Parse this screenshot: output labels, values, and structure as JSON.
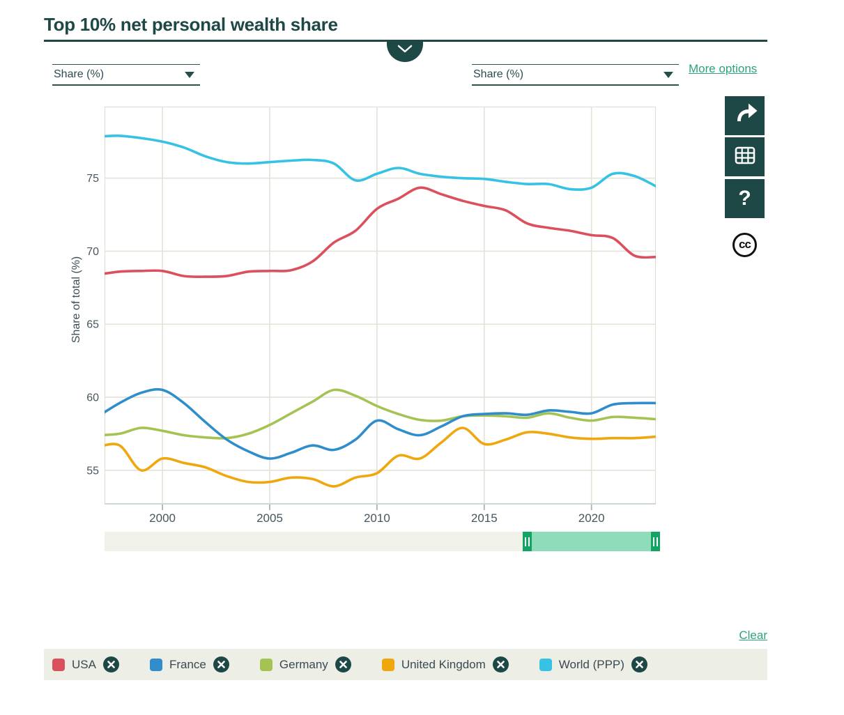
{
  "header": {
    "title": "Top 10% net personal wealth share",
    "accent_color": "#1d4845"
  },
  "controls": {
    "left_unit_select": {
      "value": "Share (%)"
    },
    "right_unit_select": {
      "value": "Share (%)"
    },
    "more_options_label": "More options",
    "link_color": "#2ba47b"
  },
  "toolbar": {
    "button_color": "#1d4845",
    "help_label": "?",
    "cc_label": "cc"
  },
  "chart_data": {
    "type": "line",
    "title": "Top 10% net personal wealth share",
    "ylabel": "Share of total (%)",
    "xlabel": "",
    "grid": true,
    "legend_position": "bottom",
    "xlim": [
      1997.3,
      2023.0
    ],
    "ylim": [
      52.7,
      79.9
    ],
    "xticks": [
      2000,
      2005,
      2010,
      2015,
      2020
    ],
    "yticks": [
      55,
      60,
      65,
      70,
      75
    ],
    "x": [
      1997,
      1998,
      1999,
      2000,
      2001,
      2002,
      2003,
      2004,
      2005,
      2006,
      2007,
      2008,
      2009,
      2010,
      2011,
      2012,
      2013,
      2014,
      2015,
      2016,
      2017,
      2018,
      2019,
      2020,
      2021,
      2022,
      2023
    ],
    "series": [
      {
        "name": "USA",
        "color": "#dc4f5c",
        "values": [
          68.4,
          68.6,
          68.65,
          68.65,
          68.3,
          68.25,
          68.3,
          68.6,
          68.65,
          68.7,
          69.3,
          70.6,
          71.4,
          72.9,
          73.6,
          74.35,
          73.9,
          73.45,
          73.1,
          72.8,
          71.9,
          71.6,
          71.4,
          71.1,
          70.9,
          69.7,
          69.6
        ]
      },
      {
        "name": "France",
        "color": "#2f8dcb",
        "values": [
          58.7,
          59.6,
          60.3,
          60.5,
          59.6,
          58.3,
          57.1,
          56.3,
          55.8,
          56.2,
          56.7,
          56.4,
          57.1,
          58.4,
          57.8,
          57.4,
          58.0,
          58.7,
          58.85,
          58.9,
          58.8,
          59.1,
          59.0,
          58.9,
          59.5,
          59.6,
          59.6
        ]
      },
      {
        "name": "Germany",
        "color": "#a5c353",
        "values": [
          57.4,
          57.5,
          57.9,
          57.7,
          57.4,
          57.25,
          57.2,
          57.5,
          58.1,
          58.9,
          59.7,
          60.5,
          60.1,
          59.4,
          58.85,
          58.45,
          58.4,
          58.7,
          58.75,
          58.7,
          58.6,
          58.9,
          58.6,
          58.4,
          58.65,
          58.6,
          58.5
        ]
      },
      {
        "name": "United Kingdom",
        "color": "#f0a70e",
        "values": [
          56.6,
          56.7,
          55.0,
          55.8,
          55.5,
          55.2,
          54.6,
          54.2,
          54.2,
          54.5,
          54.4,
          53.9,
          54.5,
          54.8,
          56.0,
          55.8,
          56.9,
          57.9,
          56.8,
          57.1,
          57.6,
          57.5,
          57.25,
          57.15,
          57.2,
          57.2,
          57.3
        ]
      },
      {
        "name": "World (PPP)",
        "color": "#36c2e4",
        "values": [
          77.85,
          77.9,
          77.75,
          77.5,
          77.1,
          76.5,
          76.1,
          76.0,
          76.1,
          76.2,
          76.25,
          76.0,
          74.85,
          75.3,
          75.7,
          75.3,
          75.1,
          75.0,
          74.95,
          74.75,
          74.6,
          74.6,
          74.25,
          74.35,
          75.3,
          75.15,
          74.45
        ]
      }
    ]
  },
  "time_slider": {
    "selected_start_year": 2017,
    "selected_end_year": 2023,
    "track_color": "#f0f1e9",
    "range_color": "#8fdcba",
    "handle_color": "#12a463"
  },
  "legend": {
    "clear_label": "Clear",
    "background": "#edeee5"
  }
}
